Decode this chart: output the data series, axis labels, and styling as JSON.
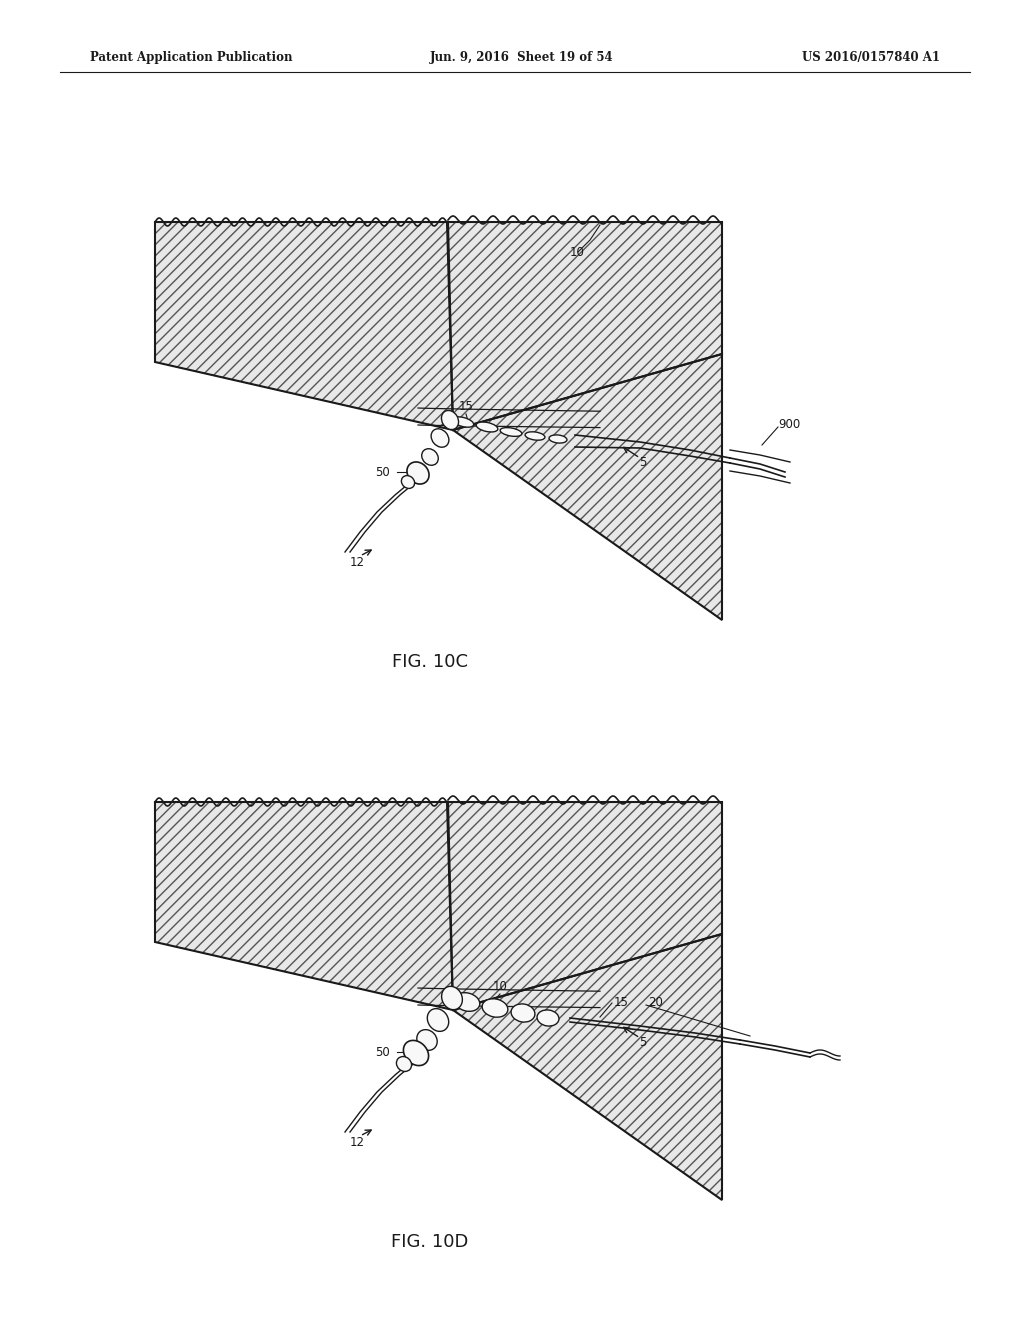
{
  "background_color": "#ffffff",
  "header_left": "Patent Application Publication",
  "header_mid": "Jun. 9, 2016  Sheet 19 of 54",
  "header_right": "US 2016/0157840 A1",
  "fig1_label": "FIG. 10C",
  "fig2_label": "FIG. 10D",
  "line_color": "#1a1a1a",
  "hatch_color": "#666666",
  "fill_color": "#e6e6e6"
}
